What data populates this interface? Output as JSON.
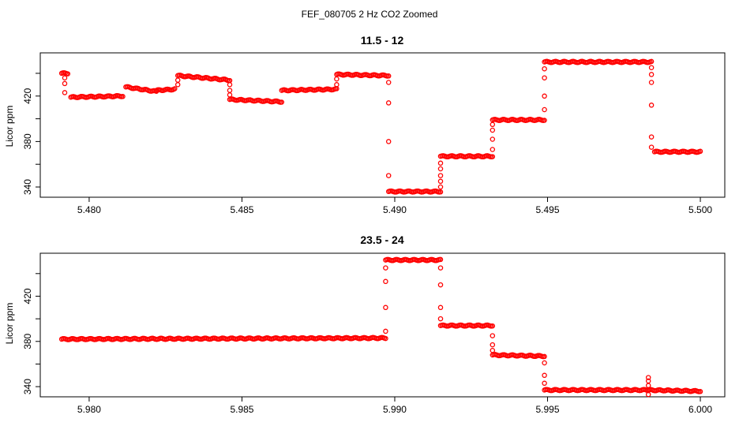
{
  "figure": {
    "title": "FEF_080705  2 Hz CO2 Zoomed"
  },
  "chart_data": [
    {
      "type": "scatter",
      "title": "11.5 - 12",
      "xlabel": "",
      "ylabel": "Licor ppm",
      "xlim": [
        5.4784,
        5.5008
      ],
      "ylim": [
        331,
        458
      ],
      "xticks": [
        5.48,
        5.485,
        5.49,
        5.495,
        5.5
      ],
      "xtick_labels": [
        "5.480",
        "5.485",
        "5.490",
        "5.495",
        "5.500"
      ],
      "yticks": [
        340,
        360,
        380,
        400,
        420,
        440
      ],
      "ytick_labels": [
        "340",
        "",
        "380",
        "",
        "420",
        ""
      ],
      "marker": "open-circle",
      "color": "#ff0000",
      "segments": [
        {
          "x0": 5.4791,
          "x1": 5.4793,
          "y0": 440,
          "y1": 440
        },
        {
          "x0": 5.4794,
          "x1": 5.4811,
          "y0": 419,
          "y1": 420
        },
        {
          "x0": 5.4812,
          "x1": 5.4822,
          "y0": 428,
          "y1": 424
        },
        {
          "x0": 5.4822,
          "x1": 5.4828,
          "y0": 425,
          "y1": 426
        },
        {
          "x0": 5.4829,
          "x1": 5.4846,
          "y0": 438,
          "y1": 434
        },
        {
          "x0": 5.4846,
          "x1": 5.4863,
          "y0": 417,
          "y1": 415
        },
        {
          "x0": 5.4863,
          "x1": 5.4881,
          "y0": 425,
          "y1": 426
        },
        {
          "x0": 5.4881,
          "x1": 5.4898,
          "y0": 439,
          "y1": 438
        },
        {
          "x0": 5.4898,
          "x1": 5.4915,
          "y0": 336,
          "y1": 336
        },
        {
          "x0": 5.4915,
          "x1": 5.4932,
          "y0": 367,
          "y1": 367
        },
        {
          "x0": 5.4932,
          "x1": 5.4949,
          "y0": 399,
          "y1": 399
        },
        {
          "x0": 5.4949,
          "x1": 5.4984,
          "y0": 450,
          "y1": 450
        },
        {
          "x0": 5.4985,
          "x1": 5.5,
          "y0": 371,
          "y1": 371
        }
      ],
      "transitions": [
        {
          "x": 5.4792,
          "from": 440,
          "to": 419,
          "values": [
            436,
            431,
            423
          ]
        },
        {
          "x": 5.4829,
          "from": 426,
          "to": 438,
          "values": [
            430,
            434
          ]
        },
        {
          "x": 5.4846,
          "from": 434,
          "to": 417,
          "values": [
            430,
            425,
            421
          ]
        },
        {
          "x": 5.4881,
          "from": 426,
          "to": 439,
          "values": [
            430,
            435
          ]
        },
        {
          "x": 5.4898,
          "from": 438,
          "to": 336,
          "values": [
            432,
            414,
            380,
            350
          ]
        },
        {
          "x": 5.4915,
          "from": 336,
          "to": 367,
          "values": [
            340,
            345,
            350,
            356,
            361
          ]
        },
        {
          "x": 5.4932,
          "from": 367,
          "to": 399,
          "values": [
            373,
            382,
            390,
            395
          ]
        },
        {
          "x": 5.4949,
          "from": 399,
          "to": 450,
          "values": [
            408,
            420,
            436,
            444
          ]
        },
        {
          "x": 5.4984,
          "from": 450,
          "to": 371,
          "values": [
            445,
            439,
            432,
            412,
            384,
            375
          ]
        }
      ]
    },
    {
      "type": "scatter",
      "title": "23.5 - 24",
      "xlabel": "",
      "ylabel": "Licor ppm",
      "xlim": [
        5.9784,
        6.0008
      ],
      "ylim": [
        331,
        458
      ],
      "xticks": [
        5.98,
        5.985,
        5.99,
        5.995,
        6.0
      ],
      "xtick_labels": [
        "5.980",
        "5.985",
        "5.990",
        "5.995",
        "6.000"
      ],
      "yticks": [
        340,
        360,
        380,
        400,
        420,
        440
      ],
      "ytick_labels": [
        "340",
        "",
        "380",
        "",
        "420",
        ""
      ],
      "marker": "open-circle",
      "color": "#ff0000",
      "segments": [
        {
          "x0": 5.9791,
          "x1": 5.9897,
          "y0": 382,
          "y1": 383
        },
        {
          "x0": 5.9897,
          "x1": 5.9915,
          "y0": 452,
          "y1": 452
        },
        {
          "x0": 5.9915,
          "x1": 5.9932,
          "y0": 394,
          "y1": 394
        },
        {
          "x0": 5.9932,
          "x1": 5.9949,
          "y0": 368,
          "y1": 367
        },
        {
          "x0": 5.9949,
          "x1": 5.9983,
          "y0": 337,
          "y1": 337
        },
        {
          "x0": 5.9983,
          "x1": 6.0,
          "y0": 337,
          "y1": 336
        }
      ],
      "transitions": [
        {
          "x": 5.9897,
          "from": 383,
          "to": 452,
          "values": [
            389,
            410,
            433,
            445
          ]
        },
        {
          "x": 5.9915,
          "from": 452,
          "to": 394,
          "values": [
            445,
            430,
            410,
            400
          ]
        },
        {
          "x": 5.9932,
          "from": 394,
          "to": 368,
          "values": [
            385,
            377,
            372
          ]
        },
        {
          "x": 5.9949,
          "from": 367,
          "to": 337,
          "values": [
            361,
            350,
            343
          ]
        },
        {
          "x": 5.9983,
          "from": 337,
          "to": 337,
          "values": [
            348,
            345,
            341,
            333
          ]
        }
      ]
    }
  ]
}
